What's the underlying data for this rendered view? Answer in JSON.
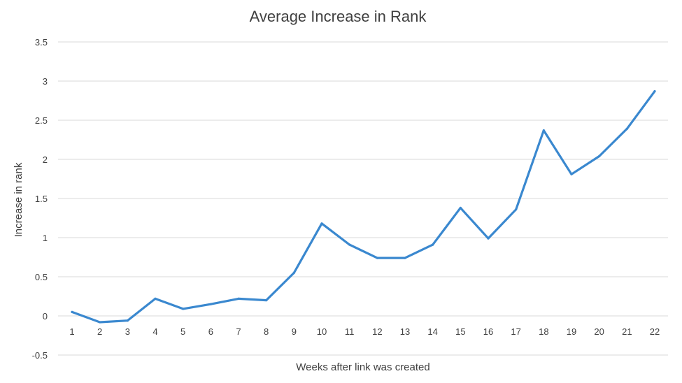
{
  "chart_data": {
    "type": "line",
    "title": "Average Increase in Rank",
    "xlabel": "Weeks after link was created",
    "ylabel": "Increase in rank",
    "ylim": [
      -0.5,
      3.5
    ],
    "y_ticks": [
      "3.5",
      "3",
      "2.5",
      "2",
      "1.5",
      "1",
      "0.5",
      "0",
      "-0.5"
    ],
    "y_tick_values": [
      3.5,
      3,
      2.5,
      2,
      1.5,
      1,
      0.5,
      0,
      -0.5
    ],
    "grid": true,
    "legend": "none",
    "categories": [
      "1",
      "2",
      "3",
      "4",
      "5",
      "6",
      "7",
      "8",
      "9",
      "10",
      "11",
      "12",
      "13",
      "14",
      "15",
      "16",
      "17",
      "18",
      "19",
      "20",
      "21",
      "22"
    ],
    "series": [
      {
        "color": "#3a88cf",
        "values": [
          0.05,
          -0.08,
          -0.06,
          0.22,
          0.09,
          0.15,
          0.22,
          0.2,
          0.55,
          1.18,
          0.91,
          0.74,
          0.74,
          0.91,
          1.38,
          0.99,
          1.36,
          2.37,
          1.81,
          2.04,
          2.39,
          2.87
        ]
      }
    ]
  }
}
